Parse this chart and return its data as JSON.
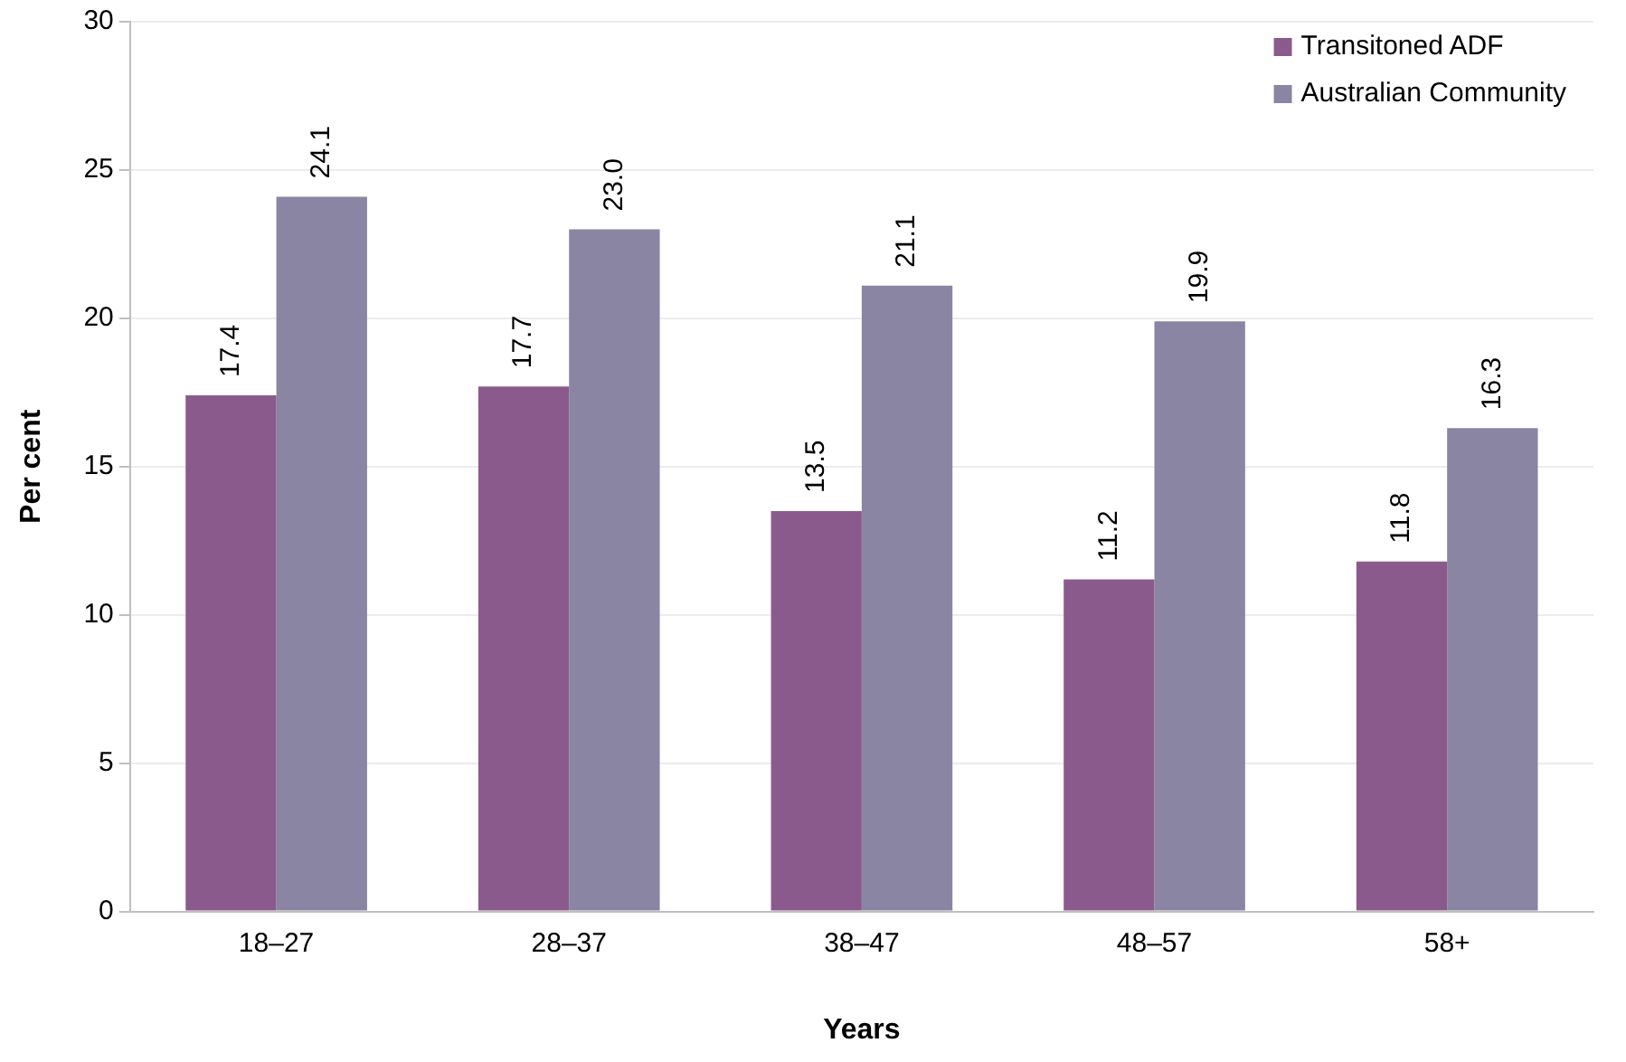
{
  "chart_data": {
    "type": "bar",
    "xlabel": "Years",
    "ylabel": "Per cent",
    "categories": [
      "18–27",
      "28–37",
      "38–47",
      "48–57",
      "58+"
    ],
    "series": [
      {
        "name": "Transitoned ADF",
        "color": "#8b5a8c",
        "values": [
          17.4,
          17.7,
          13.5,
          11.2,
          11.8
        ],
        "value_labels": [
          "17.4",
          "17.7",
          "13.5",
          "11.2",
          "11.8"
        ]
      },
      {
        "name": "Australian Community",
        "color": "#8a85a3",
        "values": [
          24.1,
          23.0,
          21.1,
          19.9,
          16.3
        ],
        "value_labels": [
          "24.1",
          "23.0",
          "21.1",
          "19.9",
          "16.3"
        ]
      }
    ],
    "ylim": [
      0,
      30
    ],
    "yticks": [
      0,
      5,
      10,
      15,
      20,
      25,
      30
    ],
    "grid": "y",
    "legend": "top right"
  }
}
